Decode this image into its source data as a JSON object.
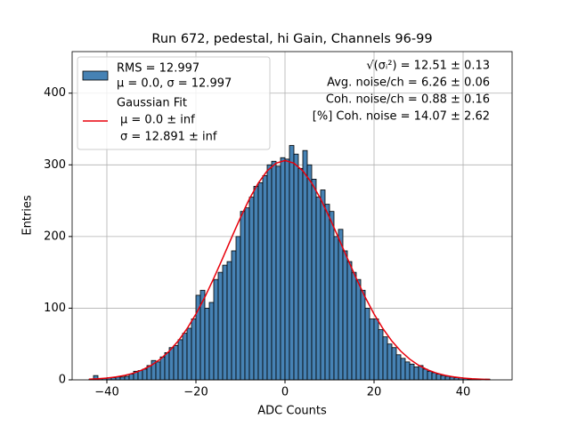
{
  "chart_data": {
    "type": "histogram",
    "title": "Run 672, pedestal, hi Gain, Channels 96-99",
    "xlabel": "ADC Counts",
    "ylabel": "Entries",
    "bins": [
      -44,
      -43,
      -42,
      -41,
      -40,
      -39,
      -38,
      -37,
      -36,
      -35,
      -34,
      -33,
      -32,
      -31,
      -30,
      -29,
      -28,
      -27,
      -26,
      -25,
      -24,
      -23,
      -22,
      -21,
      -20,
      -19,
      -18,
      -17,
      -16,
      -15,
      -14,
      -13,
      -12,
      -11,
      -10,
      -9,
      -8,
      -7,
      -6,
      -5,
      -4,
      -3,
      -2,
      -1,
      0,
      1,
      2,
      3,
      4,
      5,
      6,
      7,
      8,
      9,
      10,
      11,
      12,
      13,
      14,
      15,
      16,
      17,
      18,
      19,
      20,
      21,
      22,
      23,
      24,
      25,
      26,
      27,
      28,
      29,
      30,
      31,
      32,
      33,
      34,
      35,
      36,
      37,
      38,
      39,
      40,
      41,
      42,
      43,
      44,
      45,
      46,
      47
    ],
    "counts": [
      1,
      6,
      2,
      2,
      3,
      3,
      4,
      4,
      5,
      8,
      12,
      13,
      15,
      20,
      27,
      25,
      32,
      38,
      45,
      48,
      56,
      65,
      72,
      85,
      118,
      125,
      100,
      108,
      140,
      150,
      160,
      165,
      180,
      200,
      235,
      240,
      255,
      270,
      275,
      285,
      300,
      305,
      298,
      310,
      308,
      327,
      315,
      295,
      320,
      300,
      280,
      255,
      265,
      245,
      235,
      200,
      210,
      180,
      165,
      150,
      140,
      125,
      100,
      85,
      85,
      70,
      60,
      50,
      45,
      35,
      30,
      25,
      22,
      18,
      20,
      15,
      12,
      10,
      8,
      6,
      5,
      4,
      3,
      3,
      2,
      1,
      1,
      1,
      0,
      1,
      0
    ],
    "hist_color": "#4682b4",
    "hist_legend": [
      "RMS = 12.997",
      "μ = 0.0, σ = 12.997"
    ],
    "fit": {
      "legend": [
        "Gaussian Fit",
        "μ = 0.0 ± inf",
        "σ = 12.891 ± inf"
      ],
      "color": "#e8000b",
      "x": [
        -44,
        -42,
        -40,
        -38,
        -36,
        -34,
        -32,
        -30,
        -28,
        -26,
        -24,
        -22,
        -20,
        -18,
        -16,
        -14,
        -12,
        -10,
        -8,
        -6,
        -4,
        -2,
        0,
        2,
        4,
        6,
        8,
        10,
        12,
        14,
        16,
        18,
        20,
        22,
        24,
        26,
        28,
        30,
        32,
        34,
        36,
        38,
        40,
        42,
        44,
        46
      ],
      "values": [
        0.9,
        1.5,
        2.5,
        4.0,
        6.2,
        9.4,
        14.1,
        20.4,
        28.9,
        40.0,
        54.1,
        71.4,
        91.9,
        115.4,
        141.7,
        169.6,
        198.4,
        226.5,
        252.4,
        274.6,
        291.6,
        302.3,
        306,
        302.3,
        291.6,
        274.6,
        252.4,
        226.5,
        198.4,
        169.6,
        141.7,
        115.4,
        91.9,
        71.4,
        54.1,
        40.0,
        28.9,
        20.4,
        14.1,
        9.4,
        6.2,
        4.0,
        2.5,
        1.5,
        0.9,
        0.5
      ]
    },
    "annotations": [
      "√(σᵢ²) = 12.51 ± 0.13",
      "Avg. noise/ch = 6.26 ± 0.06",
      "Coh. noise/ch = 0.88 ± 0.16",
      "[%] Coh. noise = 14.07 ± 2.62"
    ],
    "xlim": [
      -47.8,
      51
    ],
    "ylim": [
      0,
      458
    ],
    "xticks": [
      {
        "value": -40,
        "label": "−40"
      },
      {
        "value": -20,
        "label": "−20"
      },
      0,
      20,
      40
    ],
    "yticks": [
      0,
      100,
      200,
      300,
      400
    ],
    "grid": true,
    "legend_position": "upper left"
  }
}
